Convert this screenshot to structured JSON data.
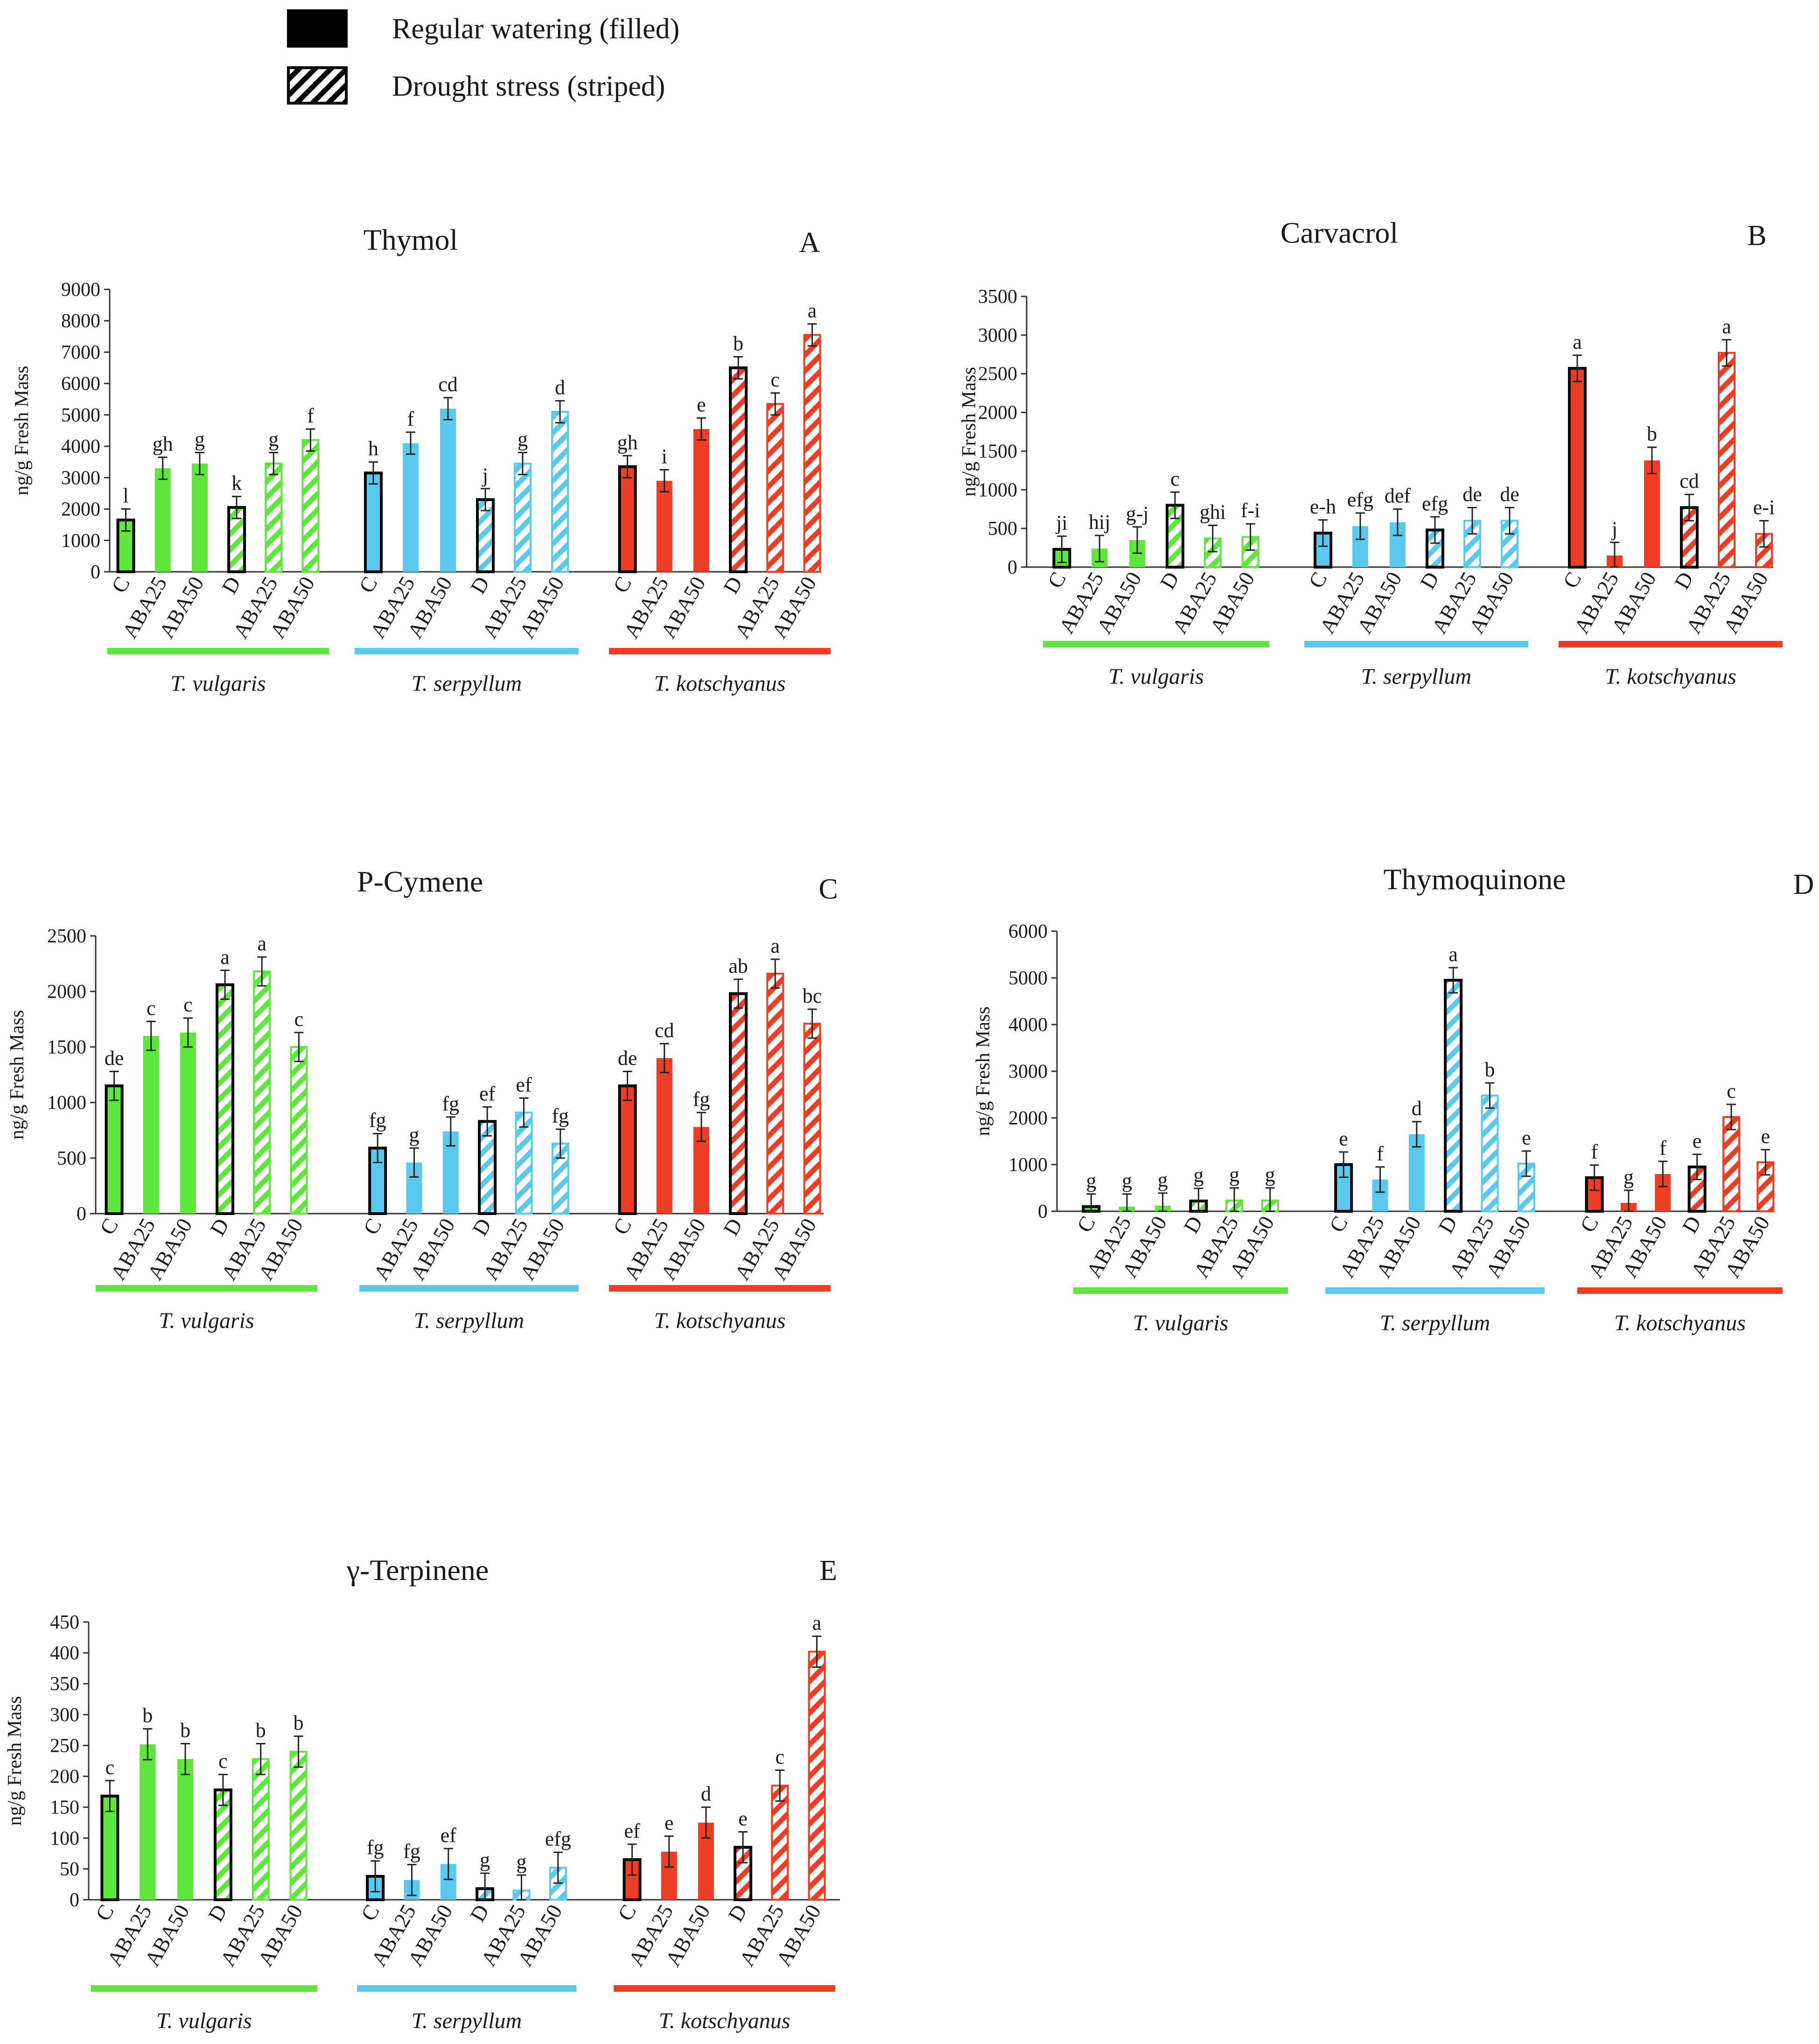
{
  "legend": {
    "regular_label": "Regular watering (filled)",
    "drought_label": "Drought stress (striped)"
  },
  "colors": {
    "T. vulgaris": "#5ee63c",
    "T. serpyllum": "#5bc8ee",
    "T. kotschyanus": "#ee3d25",
    "outline": "#000000",
    "axis": "#333333"
  },
  "chart_data": [
    {
      "type": "bar",
      "panel": "A",
      "title": "Thymol",
      "ylabel": "ng/g Fresh Mass",
      "ylim": [
        0,
        9000
      ],
      "yticks": [
        0,
        1000,
        2000,
        3000,
        4000,
        5000,
        6000,
        7000,
        8000,
        9000
      ],
      "species": [
        {
          "name": "T. vulgaris",
          "categories": [
            "C",
            "ABA25",
            "ABA50",
            "D",
            "ABA25",
            "ABA50"
          ],
          "treatment": [
            "regular",
            "regular",
            "regular",
            "drought",
            "drought",
            "drought"
          ],
          "values": [
            1650,
            3300,
            3450,
            2050,
            3450,
            4200
          ],
          "errors": [
            350,
            350,
            350,
            350,
            350,
            350
          ],
          "letters": [
            "l",
            "gh",
            "g",
            "k",
            "g",
            "f"
          ]
        },
        {
          "name": "T. serpyllum",
          "categories": [
            "C",
            "ABA25",
            "ABA50",
            "D",
            "ABA25",
            "ABA50"
          ],
          "treatment": [
            "regular",
            "regular",
            "regular",
            "drought",
            "drought",
            "drought"
          ],
          "values": [
            3150,
            4100,
            5200,
            2300,
            3450,
            5100
          ],
          "errors": [
            350,
            350,
            350,
            350,
            350,
            350
          ],
          "letters": [
            "h",
            "f",
            "cd",
            "j",
            "g",
            "d"
          ]
        },
        {
          "name": "T. kotschyanus",
          "categories": [
            "C",
            "ABA25",
            "ABA50",
            "D",
            "ABA25",
            "ABA50"
          ],
          "treatment": [
            "regular",
            "regular",
            "regular",
            "drought",
            "drought",
            "drought"
          ],
          "values": [
            3350,
            2900,
            4550,
            6500,
            5350,
            7550
          ],
          "errors": [
            350,
            350,
            350,
            350,
            350,
            350
          ],
          "letters": [
            "gh",
            "i",
            "e",
            "b",
            "c",
            "a"
          ]
        }
      ]
    },
    {
      "type": "bar",
      "panel": "B",
      "title": "Carvacrol",
      "ylabel": "ng/g Fresh Mass",
      "ylim": [
        0,
        3500
      ],
      "yticks": [
        0,
        500,
        1000,
        1500,
        2000,
        2500,
        3000,
        3500
      ],
      "species": [
        {
          "name": "T. vulgaris",
          "categories": [
            "C",
            "ABA25",
            "ABA50",
            "D",
            "ABA25",
            "ABA50"
          ],
          "treatment": [
            "regular",
            "regular",
            "regular",
            "drought",
            "drought",
            "drought"
          ],
          "values": [
            230,
            240,
            350,
            800,
            370,
            390
          ],
          "errors": [
            170,
            170,
            170,
            170,
            170,
            170
          ],
          "letters": [
            "ji",
            "hij",
            "g-j",
            "c",
            "ghi",
            "f-i"
          ]
        },
        {
          "name": "T. serpyllum",
          "categories": [
            "C",
            "ABA25",
            "ABA50",
            "D",
            "ABA25",
            "ABA50"
          ],
          "treatment": [
            "regular",
            "regular",
            "regular",
            "drought",
            "drought",
            "drought"
          ],
          "values": [
            440,
            530,
            580,
            480,
            600,
            600
          ],
          "errors": [
            170,
            170,
            170,
            170,
            170,
            170
          ],
          "letters": [
            "e-h",
            "efg",
            "def",
            "efg",
            "de",
            "de"
          ]
        },
        {
          "name": "T. kotschyanus",
          "categories": [
            "C",
            "ABA25",
            "ABA50",
            "D",
            "ABA25",
            "ABA50"
          ],
          "treatment": [
            "regular",
            "regular",
            "regular",
            "drought",
            "drought",
            "drought"
          ],
          "values": [
            2570,
            150,
            1380,
            770,
            2770,
            430
          ],
          "errors": [
            170,
            170,
            170,
            170,
            170,
            170
          ],
          "letters": [
            "a",
            "j",
            "b",
            "cd",
            "a",
            "e-i"
          ]
        }
      ]
    },
    {
      "type": "bar",
      "panel": "C",
      "title": "P-Cymene",
      "ylabel": "ng/g Fresh Mass",
      "ylim": [
        0,
        2500
      ],
      "yticks": [
        0,
        500,
        1000,
        1500,
        2000,
        2500
      ],
      "species": [
        {
          "name": "T. vulgaris",
          "categories": [
            "C",
            "ABA25",
            "ABA50",
            "D",
            "ABA25",
            "ABA50"
          ],
          "treatment": [
            "regular",
            "regular",
            "regular",
            "drought",
            "drought",
            "drought"
          ],
          "values": [
            1150,
            1600,
            1630,
            2060,
            2180,
            1500
          ],
          "errors": [
            130,
            130,
            130,
            130,
            130,
            130
          ],
          "letters": [
            "de",
            "c",
            "c",
            "a",
            "a",
            "c"
          ]
        },
        {
          "name": "T. serpyllum",
          "categories": [
            "C",
            "ABA25",
            "ABA50",
            "D",
            "ABA25",
            "ABA50"
          ],
          "treatment": [
            "regular",
            "regular",
            "regular",
            "drought",
            "drought",
            "drought"
          ],
          "values": [
            590,
            460,
            740,
            830,
            910,
            630
          ],
          "errors": [
            130,
            130,
            130,
            130,
            130,
            130
          ],
          "letters": [
            "fg",
            "g",
            "fg",
            "ef",
            "ef",
            "fg"
          ]
        },
        {
          "name": "T. kotschyanus",
          "categories": [
            "C",
            "ABA25",
            "ABA50",
            "D",
            "ABA25",
            "ABA50"
          ],
          "treatment": [
            "regular",
            "regular",
            "regular",
            "drought",
            "drought",
            "drought"
          ],
          "values": [
            1150,
            1400,
            780,
            1980,
            2160,
            1710
          ],
          "errors": [
            130,
            130,
            130,
            130,
            130,
            130
          ],
          "letters": [
            "de",
            "cd",
            "fg",
            "ab",
            "a",
            "bc"
          ]
        }
      ]
    },
    {
      "type": "bar",
      "panel": "D",
      "title": "Thymoquinone",
      "ylabel": "ng/g Fresh Mass",
      "ylim": [
        0,
        6000
      ],
      "yticks": [
        0,
        1000,
        2000,
        3000,
        4000,
        5000,
        6000
      ],
      "species": [
        {
          "name": "T. vulgaris",
          "categories": [
            "C",
            "ABA25",
            "ABA50",
            "D",
            "ABA25",
            "ABA50"
          ],
          "treatment": [
            "regular",
            "regular",
            "regular",
            "drought",
            "drought",
            "drought"
          ],
          "values": [
            100,
            100,
            120,
            220,
            230,
            230
          ],
          "errors": [
            270,
            270,
            270,
            270,
            270,
            270
          ],
          "letters": [
            "g",
            "g",
            "g",
            "g",
            "g",
            "g"
          ]
        },
        {
          "name": "T. serpyllum",
          "categories": [
            "C",
            "ABA25",
            "ABA50",
            "D",
            "ABA25",
            "ABA50"
          ],
          "treatment": [
            "regular",
            "regular",
            "regular",
            "drought",
            "drought",
            "drought"
          ],
          "values": [
            1000,
            680,
            1650,
            4950,
            2480,
            1020
          ],
          "errors": [
            270,
            270,
            270,
            270,
            270,
            270
          ],
          "letters": [
            "e",
            "f",
            "d",
            "a",
            "b",
            "e"
          ]
        },
        {
          "name": "T. kotschyanus",
          "categories": [
            "C",
            "ABA25",
            "ABA50",
            "D",
            "ABA25",
            "ABA50"
          ],
          "treatment": [
            "regular",
            "regular",
            "regular",
            "drought",
            "drought",
            "drought"
          ],
          "values": [
            720,
            180,
            800,
            950,
            2020,
            1050
          ],
          "errors": [
            270,
            270,
            270,
            270,
            270,
            270
          ],
          "letters": [
            "f",
            "g",
            "f",
            "e",
            "c",
            "e"
          ]
        }
      ]
    },
    {
      "type": "bar",
      "panel": "E",
      "title": "γ-Terpinene",
      "ylabel": "ng/g Fresh Mass",
      "ylim": [
        0,
        450
      ],
      "yticks": [
        0,
        50,
        100,
        150,
        200,
        250,
        300,
        350,
        400,
        450
      ],
      "species": [
        {
          "name": "T. vulgaris",
          "categories": [
            "C",
            "ABA25",
            "ABA50",
            "D",
            "ABA25",
            "ABA50"
          ],
          "treatment": [
            "regular",
            "regular",
            "regular",
            "drought",
            "drought",
            "drought"
          ],
          "values": [
            168,
            252,
            228,
            178,
            228,
            240
          ],
          "errors": [
            25,
            25,
            25,
            25,
            25,
            25
          ],
          "letters": [
            "c",
            "b",
            "b",
            "c",
            "b",
            "b"
          ]
        },
        {
          "name": "T. serpyllum",
          "categories": [
            "C",
            "ABA25",
            "ABA50",
            "D",
            "ABA25",
            "ABA50"
          ],
          "treatment": [
            "regular",
            "regular",
            "regular",
            "drought",
            "drought",
            "drought"
          ],
          "values": [
            38,
            32,
            58,
            18,
            15,
            52
          ],
          "errors": [
            25,
            25,
            25,
            25,
            25,
            25
          ],
          "letters": [
            "fg",
            "fg",
            "ef",
            "g",
            "g",
            "efg"
          ]
        },
        {
          "name": "T. kotschyanus",
          "categories": [
            "C",
            "ABA25",
            "ABA50",
            "D",
            "ABA25",
            "ABA50"
          ],
          "treatment": [
            "regular",
            "regular",
            "regular",
            "drought",
            "drought",
            "drought"
          ],
          "values": [
            65,
            78,
            125,
            85,
            185,
            402
          ],
          "errors": [
            25,
            25,
            25,
            25,
            25,
            25
          ],
          "letters": [
            "ef",
            "e",
            "d",
            "e",
            "c",
            "a"
          ]
        }
      ]
    }
  ]
}
